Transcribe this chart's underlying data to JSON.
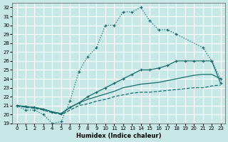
{
  "xlabel": "Humidex (Indice chaleur)",
  "bg_color": "#c8e8e8",
  "grid_color": "#ffffff",
  "line_color": "#1a6b6b",
  "xlim": [
    -0.5,
    23.5
  ],
  "ylim": [
    19,
    32.5
  ],
  "xticks": [
    0,
    1,
    2,
    3,
    4,
    5,
    6,
    7,
    8,
    9,
    10,
    11,
    12,
    13,
    14,
    15,
    16,
    17,
    18,
    19,
    20,
    21,
    22,
    23
  ],
  "yticks": [
    19,
    20,
    21,
    22,
    23,
    24,
    25,
    26,
    27,
    28,
    29,
    30,
    31,
    32
  ],
  "series": [
    {
      "x": [
        0,
        1,
        2,
        3,
        4,
        5,
        6,
        7,
        8,
        9,
        10,
        11,
        12,
        13,
        14,
        15,
        16,
        17,
        18,
        21,
        22,
        23
      ],
      "y": [
        21,
        20.5,
        20.5,
        20,
        19,
        19.2,
        21.5,
        24.8,
        26.5,
        27.5,
        30,
        30,
        31.5,
        31.5,
        32,
        30.5,
        29.5,
        29.5,
        29,
        27.5,
        26,
        24
      ],
      "linestyle": ":",
      "marker": "+"
    },
    {
      "x": [
        0,
        1,
        2,
        3,
        4,
        5,
        6,
        7,
        8,
        9,
        10,
        11,
        12,
        13,
        14,
        15,
        16,
        17,
        18,
        19,
        20,
        21,
        22,
        23
      ],
      "y": [
        21,
        20.8,
        20.7,
        20.5,
        20.2,
        20.0,
        20.5,
        21.0,
        21.2,
        21.5,
        21.7,
        22.0,
        22.2,
        22.4,
        22.5,
        22.5,
        22.6,
        22.7,
        22.8,
        22.9,
        23.0,
        23.0,
        23.2,
        23.3
      ],
      "linestyle": "--",
      "marker": null
    },
    {
      "x": [
        0,
        1,
        2,
        3,
        4,
        5,
        6,
        7,
        8,
        9,
        10,
        11,
        12,
        13,
        14,
        15,
        16,
        17,
        18,
        19,
        20,
        21,
        22,
        23
      ],
      "y": [
        21,
        20.9,
        20.8,
        20.6,
        20.3,
        20.1,
        20.8,
        21.3,
        21.7,
        22.0,
        22.3,
        22.6,
        23.0,
        23.2,
        23.4,
        23.5,
        23.6,
        23.8,
        24.0,
        24.2,
        24.4,
        24.5,
        24.5,
        24.0
      ],
      "linestyle": "-",
      "marker": null
    },
    {
      "x": [
        0,
        1,
        2,
        3,
        4,
        5,
        6,
        7,
        8,
        9,
        10,
        11,
        12,
        13,
        14,
        15,
        16,
        17,
        18,
        19,
        20,
        21,
        22,
        23
      ],
      "y": [
        21,
        20.9,
        20.8,
        20.6,
        20.3,
        20.1,
        20.8,
        21.3,
        22.0,
        22.5,
        23.0,
        23.5,
        24.0,
        24.5,
        25.0,
        25.0,
        25.2,
        25.5,
        26.0,
        26.0,
        26.0,
        26.0,
        26.0,
        23.5
      ],
      "linestyle": "-",
      "marker": "+"
    }
  ]
}
